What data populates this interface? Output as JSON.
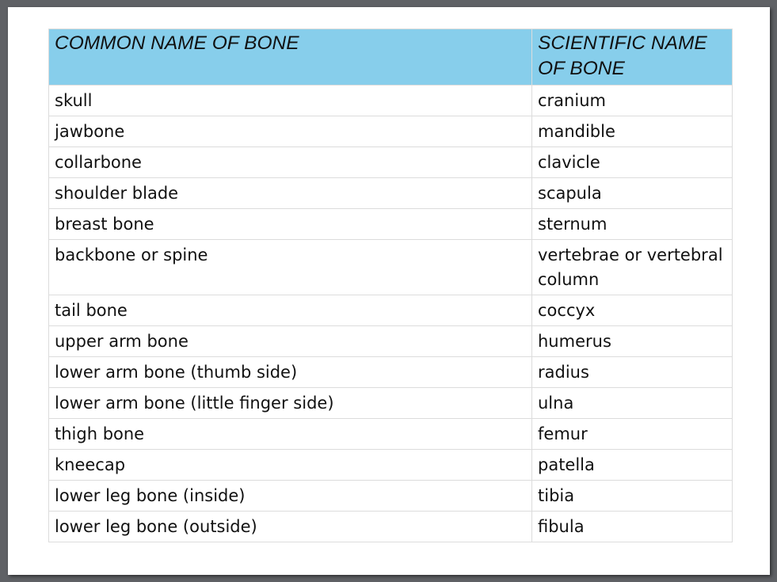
{
  "table": {
    "headers": [
      "COMMON NAME OF BONE",
      "SCIENTIFIC NAME OF BONE"
    ],
    "rows": [
      [
        "skull",
        "cranium"
      ],
      [
        "jawbone",
        "mandible"
      ],
      [
        "collarbone",
        "clavicle"
      ],
      [
        "shoulder blade",
        "scapula"
      ],
      [
        "breast bone",
        "sternum"
      ],
      [
        "backbone or spine",
        "vertebrae or vertebral column"
      ],
      [
        "tail bone",
        "coccyx"
      ],
      [
        "upper arm bone",
        "humerus"
      ],
      [
        "lower arm bone (thumb side)",
        "radius"
      ],
      [
        "lower arm bone (little finger side)",
        "ulna"
      ],
      [
        "thigh bone",
        "femur"
      ],
      [
        "kneecap",
        "patella"
      ],
      [
        "lower leg bone (inside)",
        "tibia"
      ],
      [
        "lower leg bone (outside)",
        "fibula"
      ]
    ]
  }
}
